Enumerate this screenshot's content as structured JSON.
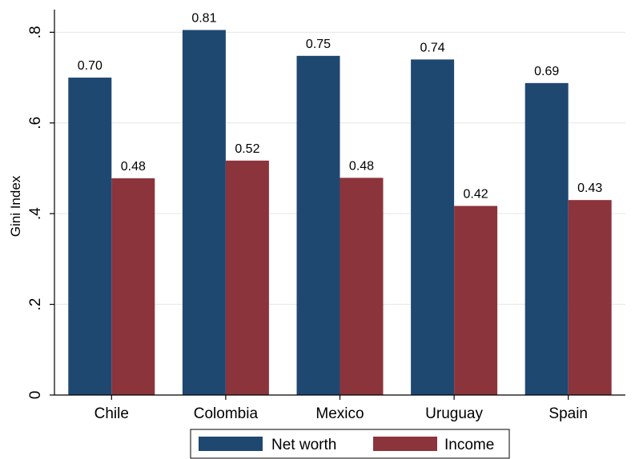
{
  "chart_data": {
    "type": "bar",
    "title": "",
    "xlabel": "",
    "ylabel": "Gini Index",
    "ylim": [
      0,
      0.85
    ],
    "yticks": [
      0,
      0.2,
      0.4,
      0.6,
      0.8
    ],
    "ytick_labels": [
      "0",
      ".2",
      ".4",
      ".6",
      ".8"
    ],
    "categories": [
      "Chile",
      "Colombia",
      "Mexico",
      "Uruguay",
      "Spain"
    ],
    "series": [
      {
        "name": "Net worth",
        "color": "#1f4871",
        "values": [
          0.7,
          0.805,
          0.748,
          0.74,
          0.688
        ],
        "labels": [
          "0.70",
          "0.81",
          "0.75",
          "0.74",
          "0.69"
        ]
      },
      {
        "name": "Income",
        "color": "#8c343b",
        "values": [
          0.478,
          0.517,
          0.479,
          0.417,
          0.43
        ],
        "labels": [
          "0.48",
          "0.52",
          "0.48",
          "0.42",
          "0.43"
        ]
      }
    ],
    "grid": true,
    "legend_position": "bottom"
  }
}
